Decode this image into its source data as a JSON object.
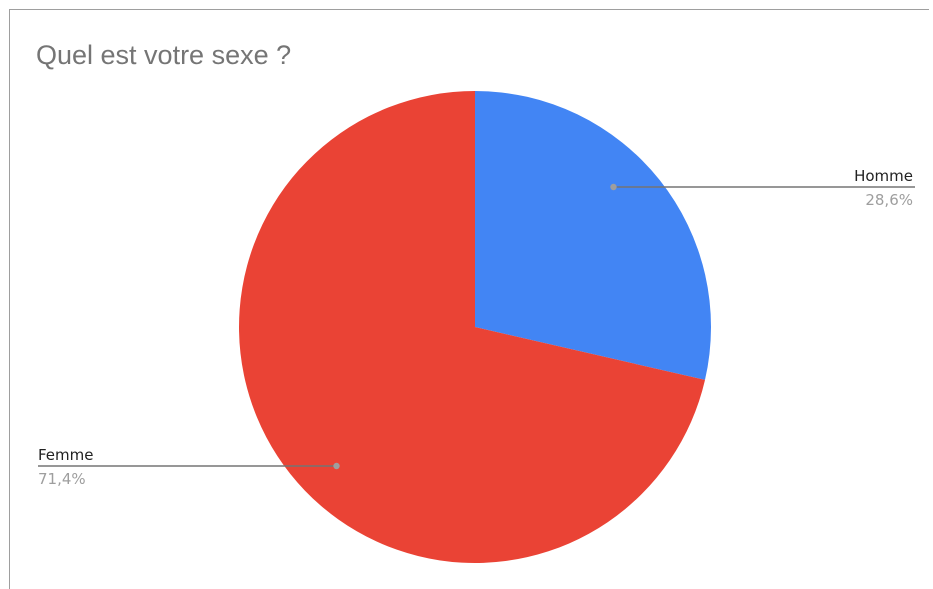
{
  "chart_data": {
    "type": "pie",
    "title": "Quel est votre sexe ?",
    "slices": [
      {
        "label": "Homme",
        "value": 28.6,
        "display": "28,6%",
        "color": "#4285f4"
      },
      {
        "label": "Femme",
        "value": 71.4,
        "display": "71,4%",
        "color": "#ea4335"
      }
    ]
  }
}
